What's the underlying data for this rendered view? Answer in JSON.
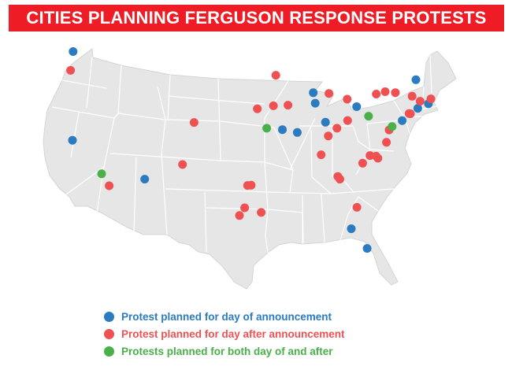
{
  "title": "CITIES PLANNING FERGUSON RESPONSE PROTESTS",
  "colors": {
    "title_bg": "#ee1c25",
    "title_text": "#ffffff",
    "land": "#e6e6e6",
    "borders": "#ffffff",
    "day_of": "#2b7bc0",
    "after": "#ef5153",
    "both": "#49b04a"
  },
  "legend": [
    {
      "key": "day_of",
      "label": "Protest planned for day of announcement"
    },
    {
      "key": "after",
      "label": "Protest planned for day after announcement"
    },
    {
      "key": "both",
      "label": "Protests planned for both day of and after"
    }
  ],
  "markers": [
    {
      "lat": 47.61,
      "lon": -122.33,
      "type": "day_of"
    },
    {
      "lat": 45.52,
      "lon": -122.68,
      "type": "after"
    },
    {
      "lat": 37.77,
      "lon": -122.42,
      "type": "day_of"
    },
    {
      "lat": 34.05,
      "lon": -118.24,
      "type": "both"
    },
    {
      "lat": 32.72,
      "lon": -117.16,
      "type": "after"
    },
    {
      "lat": 33.45,
      "lon": -112.07,
      "type": "day_of"
    },
    {
      "lat": 39.74,
      "lon": -104.99,
      "type": "after"
    },
    {
      "lat": 35.08,
      "lon": -106.65,
      "type": "after"
    },
    {
      "lat": 32.78,
      "lon": -96.8,
      "type": "after"
    },
    {
      "lat": 32.75,
      "lon": -97.33,
      "type": "after"
    },
    {
      "lat": 29.76,
      "lon": -95.37,
      "type": "after"
    },
    {
      "lat": 29.42,
      "lon": -98.49,
      "type": "after"
    },
    {
      "lat": 30.27,
      "lon": -97.74,
      "type": "after"
    },
    {
      "lat": 39.1,
      "lon": -94.58,
      "type": "both"
    },
    {
      "lat": 38.63,
      "lon": -90.2,
      "type": "day_of"
    },
    {
      "lat": 38.95,
      "lon": -92.33,
      "type": "day_of"
    },
    {
      "lat": 41.26,
      "lon": -95.93,
      "type": "after"
    },
    {
      "lat": 41.59,
      "lon": -93.62,
      "type": "after"
    },
    {
      "lat": 41.66,
      "lon": -91.53,
      "type": "after"
    },
    {
      "lat": 44.98,
      "lon": -93.27,
      "type": "after"
    },
    {
      "lat": 41.88,
      "lon": -87.63,
      "type": "day_of"
    },
    {
      "lat": 43.04,
      "lon": -87.91,
      "type": "day_of"
    },
    {
      "lat": 39.77,
      "lon": -86.16,
      "type": "day_of"
    },
    {
      "lat": 42.33,
      "lon": -83.05,
      "type": "after"
    },
    {
      "lat": 42.96,
      "lon": -85.67,
      "type": "after"
    },
    {
      "lat": 41.5,
      "lon": -81.69,
      "type": "day_of"
    },
    {
      "lat": 39.96,
      "lon": -82.99,
      "type": "after"
    },
    {
      "lat": 39.1,
      "lon": -84.51,
      "type": "after"
    },
    {
      "lat": 40.44,
      "lon": -79.99,
      "type": "both"
    },
    {
      "lat": 38.25,
      "lon": -85.76,
      "type": "after"
    },
    {
      "lat": 36.16,
      "lon": -86.78,
      "type": "after"
    },
    {
      "lat": 33.75,
      "lon": -84.39,
      "type": "after"
    },
    {
      "lat": 33.45,
      "lon": -84.1,
      "type": "after"
    },
    {
      "lat": 35.23,
      "lon": -80.84,
      "type": "after"
    },
    {
      "lat": 35.78,
      "lon": -78.64,
      "type": "after"
    },
    {
      "lat": 36.0,
      "lon": -78.9,
      "type": "after"
    },
    {
      "lat": 36.07,
      "lon": -79.79,
      "type": "after"
    },
    {
      "lat": 37.54,
      "lon": -77.43,
      "type": "after"
    },
    {
      "lat": 38.91,
      "lon": -77.04,
      "type": "after"
    },
    {
      "lat": 39.29,
      "lon": -76.61,
      "type": "both"
    },
    {
      "lat": 39.95,
      "lon": -75.17,
      "type": "day_of"
    },
    {
      "lat": 40.71,
      "lon": -74.0,
      "type": "after"
    },
    {
      "lat": 40.74,
      "lon": -74.17,
      "type": "after"
    },
    {
      "lat": 41.31,
      "lon": -72.93,
      "type": "day_of"
    },
    {
      "lat": 41.82,
      "lon": -71.41,
      "type": "day_of"
    },
    {
      "lat": 42.36,
      "lon": -71.06,
      "type": "after"
    },
    {
      "lat": 42.1,
      "lon": -72.59,
      "type": "after"
    },
    {
      "lat": 42.65,
      "lon": -73.75,
      "type": "after"
    },
    {
      "lat": 43.05,
      "lon": -76.15,
      "type": "after"
    },
    {
      "lat": 43.16,
      "lon": -77.61,
      "type": "after"
    },
    {
      "lat": 42.89,
      "lon": -78.88,
      "type": "after"
    },
    {
      "lat": 44.48,
      "lon": -73.21,
      "type": "day_of"
    },
    {
      "lat": 30.33,
      "lon": -81.66,
      "type": "after"
    },
    {
      "lat": 27.95,
      "lon": -82.46,
      "type": "day_of"
    },
    {
      "lat": 25.77,
      "lon": -80.19,
      "type": "day_of"
    }
  ]
}
